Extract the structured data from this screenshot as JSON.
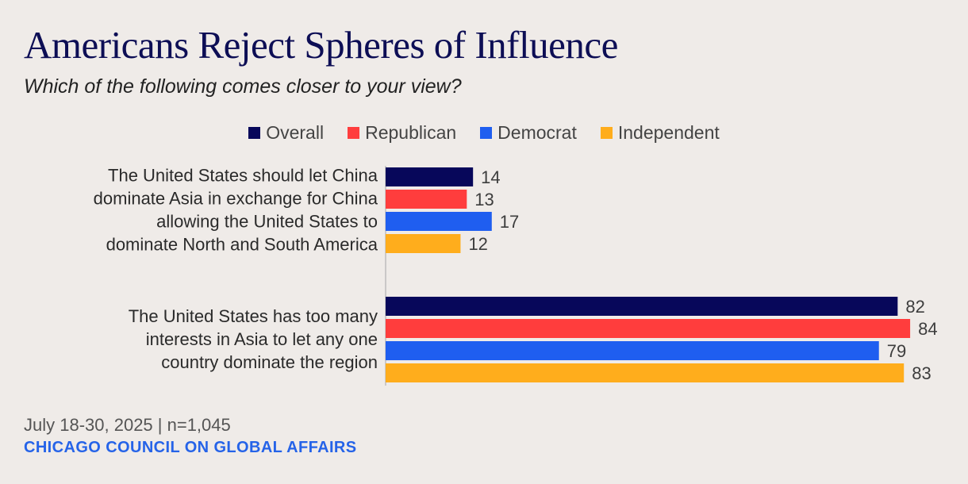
{
  "title": "Americans Reject Spheres of Influence",
  "subtitle": "Which of the following comes closer to your view?",
  "footnote": "July 18-30, 2025 | n=1,045",
  "source": "CHICAGO COUNCIL ON GLOBAL AFFAIRS",
  "chart_data": {
    "type": "bar",
    "orientation": "horizontal",
    "title": "Americans Reject Spheres of Influence",
    "subtitle": "Which of the following comes closer to your view?",
    "legend_position": "top-center",
    "grid": false,
    "xlim": [
      0,
      100
    ],
    "categories": [
      {
        "label_lines": [
          "The United States should let China",
          "dominate Asia in exchange for China",
          "allowing the United States to",
          "dominate North and South America"
        ]
      },
      {
        "label_lines": [
          "The United States has too many",
          "interests in Asia to let any one",
          "country dominate the region"
        ]
      }
    ],
    "series": [
      {
        "name": "Overall",
        "color": "#07075a",
        "values": [
          14,
          82
        ]
      },
      {
        "name": "Republican",
        "color": "#ff3d3d",
        "values": [
          13,
          84
        ]
      },
      {
        "name": "Democrat",
        "color": "#1f5ef0",
        "values": [
          17,
          79
        ]
      },
      {
        "name": "Independent",
        "color": "#ffad1c",
        "values": [
          12,
          83
        ]
      }
    ]
  }
}
